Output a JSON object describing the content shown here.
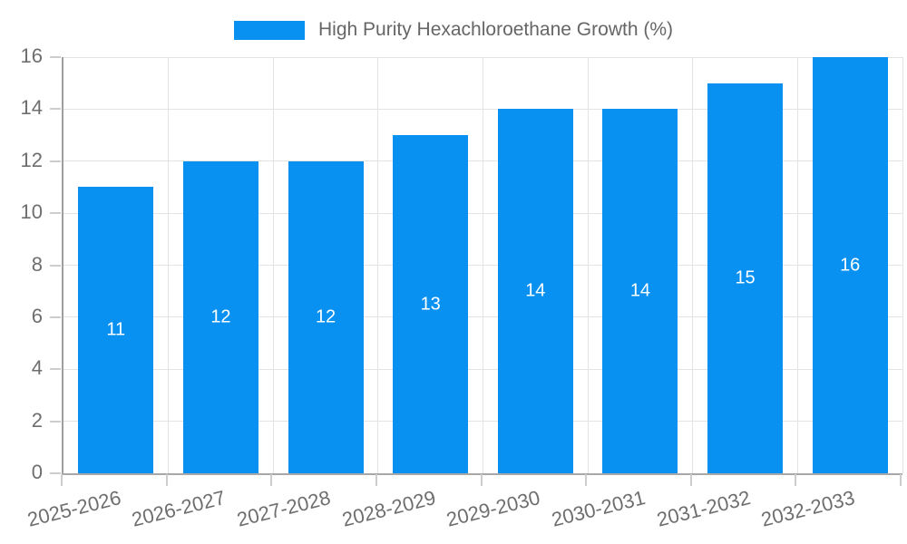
{
  "chart_data": {
    "type": "bar",
    "title": "High Purity Hexachloroethane Growth (%)",
    "categories": [
      "2025-2026",
      "2026-2027",
      "2027-2028",
      "2028-2029",
      "2029-2030",
      "2030-2031",
      "2031-2032",
      "2032-2033"
    ],
    "values": [
      11,
      12,
      12,
      13,
      14,
      14,
      15,
      16
    ],
    "xlabel": "",
    "ylabel": "",
    "ylim": [
      0,
      16
    ],
    "ytick_step": 2,
    "ytick_labels": [
      "0",
      "2",
      "4",
      "6",
      "8",
      "10",
      "12",
      "14",
      "16"
    ],
    "grid": true,
    "legend_position": "top",
    "data_labels_inside_bars": true,
    "colors": {
      "bar": "#0991f2",
      "bar_label_text": "#ffffff",
      "legend_text": "#666666",
      "axis_text": "#6e6e6e",
      "gridline": "#e3e3e3",
      "axis_line": "#a0a0a0"
    }
  }
}
